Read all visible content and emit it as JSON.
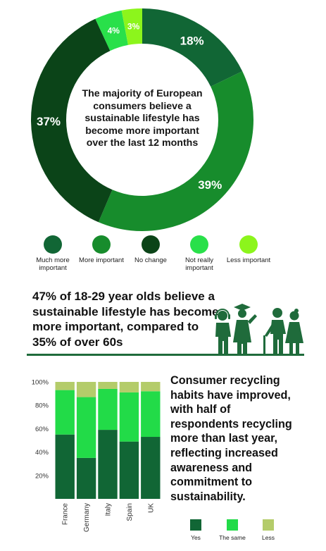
{
  "colors": {
    "much_more_important": "#116635",
    "more_important": "#178c2c",
    "no_change": "#0b4418",
    "not_really_important": "#29e04a",
    "less_important": "#8cf51c",
    "bar_yes": "#116635",
    "bar_same": "#22db48",
    "bar_less": "#b4cc6a",
    "divider": "#1f6b3b"
  },
  "donut": {
    "center_text": "The majority of European consumers believe a sustainable lifestyle has become more important over the last 12 months"
  },
  "stat": {
    "text": "47% of 18-29 year olds believe a sustainable lifestyle has become more important, compared to 35% of over 60s",
    "icon": "people-group-icon"
  },
  "recycling": {
    "text": "Consumer recycling habits have improved, with half of respondents recycling more than last year, reflecting increased awareness and commitment to sustainability."
  },
  "chart_data": [
    {
      "type": "pie",
      "title": "",
      "labels": [
        "Much more important",
        "More important",
        "No change",
        "Not really important",
        "Less important"
      ],
      "values": [
        18,
        39,
        37,
        4,
        3
      ],
      "value_labels": [
        "18%",
        "39%",
        "37%",
        "4%",
        "3%"
      ],
      "display": "donut",
      "legend_placement": "bottom"
    },
    {
      "type": "bar",
      "stacked": true,
      "categories": [
        "France",
        "Germany",
        "Italy",
        "Spain",
        "UK"
      ],
      "series": [
        {
          "name": "Yes",
          "values": [
            55,
            35,
            59,
            49,
            53
          ]
        },
        {
          "name": "The same",
          "values": [
            38,
            52,
            35,
            42,
            39
          ]
        },
        {
          "name": "Less",
          "values": [
            7,
            13,
            6,
            9,
            8
          ]
        }
      ],
      "yticks": [
        "20%",
        "40%",
        "60%",
        "80%",
        "100%"
      ],
      "ylim": [
        0,
        100
      ],
      "xlabel": "",
      "ylabel": "",
      "grid": false,
      "legend_placement": "bottom"
    }
  ]
}
